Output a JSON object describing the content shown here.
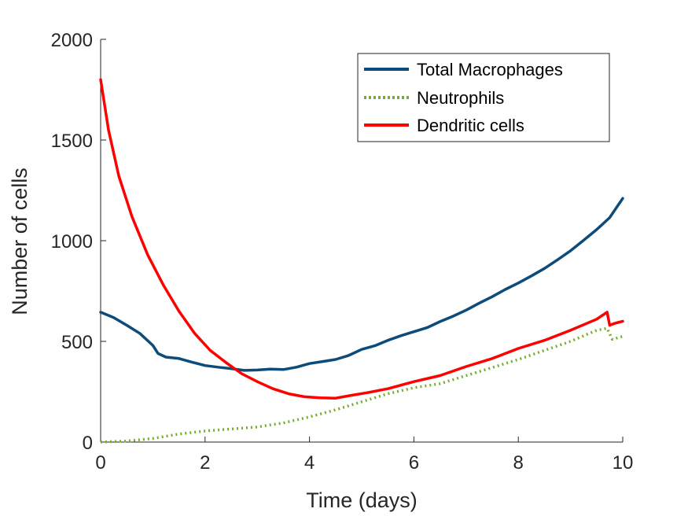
{
  "chart_data": {
    "type": "line",
    "title": "",
    "xlabel": "Time (days)",
    "ylabel": "Number of cells",
    "xlim": [
      0,
      10
    ],
    "ylim": [
      0,
      2000
    ],
    "xticks": [
      0,
      2,
      4,
      6,
      8,
      10
    ],
    "yticks": [
      0,
      500,
      1000,
      1500,
      2000
    ],
    "xtick_labels": [
      "0",
      "2",
      "4",
      "6",
      "8",
      "10"
    ],
    "ytick_labels": [
      "0",
      "500",
      "1000",
      "1500",
      "2000"
    ],
    "grid": false,
    "legend": "top-right",
    "series": [
      {
        "name": "Total Macrophages",
        "color": "#0c4b7a",
        "style": "solid",
        "x": [
          0,
          0.25,
          0.5,
          0.75,
          1.0,
          1.1,
          1.25,
          1.5,
          1.75,
          2.0,
          2.25,
          2.5,
          2.75,
          3.0,
          3.25,
          3.5,
          3.75,
          4.0,
          4.25,
          4.5,
          4.75,
          5.0,
          5.25,
          5.5,
          5.75,
          6.0,
          6.25,
          6.5,
          6.75,
          7.0,
          7.25,
          7.5,
          7.75,
          8.0,
          8.25,
          8.5,
          8.75,
          9.0,
          9.25,
          9.5,
          9.75,
          10.0
        ],
        "values": [
          645,
          618,
          580,
          540,
          480,
          440,
          422,
          415,
          397,
          380,
          372,
          365,
          356,
          358,
          362,
          360,
          372,
          390,
          400,
          410,
          430,
          460,
          478,
          505,
          528,
          548,
          568,
          598,
          625,
          655,
          690,
          722,
          758,
          790,
          825,
          862,
          905,
          950,
          1002,
          1055,
          1115,
          1210
        ]
      },
      {
        "name": "Neutrophils",
        "color": "#77ac30",
        "style": "dotted",
        "x": [
          0,
          0.5,
          1.0,
          1.5,
          2.0,
          2.5,
          3.0,
          3.5,
          4.0,
          4.5,
          5.0,
          5.5,
          6.0,
          6.5,
          7.0,
          7.5,
          8.0,
          8.5,
          9.0,
          9.5,
          9.7,
          9.8,
          10.0
        ],
        "values": [
          0,
          5,
          18,
          40,
          55,
          65,
          75,
          95,
          125,
          160,
          200,
          240,
          270,
          290,
          330,
          370,
          410,
          455,
          500,
          555,
          565,
          510,
          525
        ]
      },
      {
        "name": "Dendritic cells",
        "color": "#ff0000",
        "style": "solid",
        "x": [
          0,
          0.15,
          0.35,
          0.6,
          0.9,
          1.2,
          1.5,
          1.8,
          2.1,
          2.4,
          2.7,
          3.0,
          3.3,
          3.6,
          3.9,
          4.2,
          4.5,
          4.8,
          5.1,
          5.5,
          6.0,
          6.5,
          7.0,
          7.5,
          8.0,
          8.5,
          9.0,
          9.5,
          9.7,
          9.75,
          9.85,
          10.0
        ],
        "values": [
          1800,
          1550,
          1320,
          1120,
          930,
          780,
          650,
          540,
          455,
          395,
          340,
          300,
          265,
          240,
          225,
          220,
          218,
          232,
          245,
          265,
          300,
          330,
          375,
          415,
          465,
          505,
          555,
          610,
          645,
          580,
          590,
          600
        ]
      }
    ]
  }
}
